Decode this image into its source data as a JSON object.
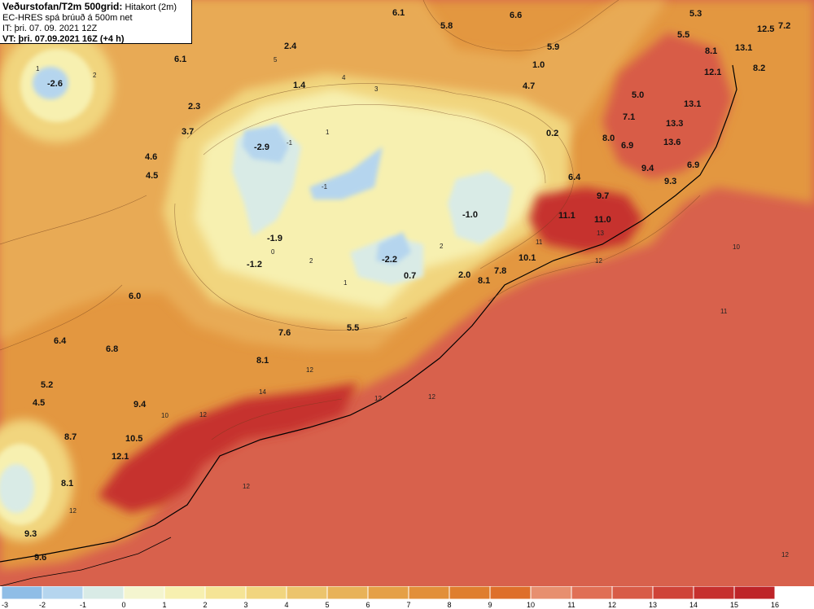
{
  "header": {
    "title": "Veðurstofan/T2m 500grid:",
    "title_suffix": "Hitakort (2m)",
    "model_line": "EC-HRES spá brúuð á 500m net",
    "init_time": "IT: þri. 07. 09. 2021 12Z",
    "valid_time": "VT: þri. 07.09.2021 16Z (+4 h)"
  },
  "legend": {
    "ticks": [
      "-3",
      "-2",
      "-1",
      "0",
      "1",
      "2",
      "3",
      "4",
      "5",
      "6",
      "7",
      "8",
      "9",
      "10",
      "11",
      "12",
      "13",
      "14",
      "15",
      "16"
    ],
    "colors": [
      "#8fbde6",
      "#b5d5ee",
      "#d9ebe6",
      "#f4f5cf",
      "#f7f0b0",
      "#f5e495",
      "#f1d57e",
      "#ecc46c",
      "#e8b258",
      "#e5a046",
      "#e28f39",
      "#df7e2e",
      "#de6f2a",
      "#e78f6f",
      "#e06f55",
      "#d85b47",
      "#cf4338",
      "#c6302e",
      "#be2428"
    ]
  },
  "temperature_labels": [
    {
      "text": "-2.6"
    },
    {
      "text": "6.1"
    },
    {
      "text": "2.4"
    },
    {
      "text": "6.1"
    },
    {
      "text": "5.8"
    },
    {
      "text": "6.6"
    },
    {
      "text": "5.9"
    },
    {
      "text": "1.0"
    },
    {
      "text": "4.7"
    },
    {
      "text": "5.3"
    },
    {
      "text": "5.5"
    },
    {
      "text": "12.5"
    },
    {
      "text": "7.2"
    },
    {
      "text": "8.1"
    },
    {
      "text": "13.1"
    },
    {
      "text": "8.2"
    },
    {
      "text": "12.1"
    },
    {
      "text": "1.4"
    },
    {
      "text": "2.3"
    },
    {
      "text": "3.7"
    },
    {
      "text": "-2.9"
    },
    {
      "text": "5.0"
    },
    {
      "text": "13.1"
    },
    {
      "text": "7.1"
    },
    {
      "text": "13.3"
    },
    {
      "text": "0.2"
    },
    {
      "text": "8.0"
    },
    {
      "text": "6.9"
    },
    {
      "text": "13.6"
    },
    {
      "text": "4.6"
    },
    {
      "text": "4.5"
    },
    {
      "text": "9.4"
    },
    {
      "text": "6.9"
    },
    {
      "text": "6.4"
    },
    {
      "text": "9.3"
    },
    {
      "text": "9.7"
    },
    {
      "text": "11.1"
    },
    {
      "text": "11.0"
    },
    {
      "text": "-1.0"
    },
    {
      "text": "-1.9"
    },
    {
      "text": "-1.2"
    },
    {
      "text": "-2.2"
    },
    {
      "text": "10.1"
    },
    {
      "text": "7.8"
    },
    {
      "text": "2.0"
    },
    {
      "text": "8.1"
    },
    {
      "text": "0.7"
    },
    {
      "text": "6.0"
    },
    {
      "text": "6.4"
    },
    {
      "text": "7.6"
    },
    {
      "text": "5.5"
    },
    {
      "text": "6.8"
    },
    {
      "text": "8.1"
    },
    {
      "text": "5.2"
    },
    {
      "text": "4.5"
    },
    {
      "text": "9.4"
    },
    {
      "text": "10.5"
    },
    {
      "text": "8.7"
    },
    {
      "text": "12.1"
    },
    {
      "text": "8.1"
    },
    {
      "text": "9.3"
    },
    {
      "text": "9.6"
    }
  ],
  "contour_labels": [
    "2",
    "1",
    "-1",
    "0",
    "1",
    "2",
    "5",
    "4",
    "3",
    "1",
    "-1",
    "2",
    "12",
    "14",
    "12",
    "12",
    "10",
    "12",
    "12",
    "10",
    "11",
    "11",
    "13",
    "12",
    "12",
    "12"
  ]
}
